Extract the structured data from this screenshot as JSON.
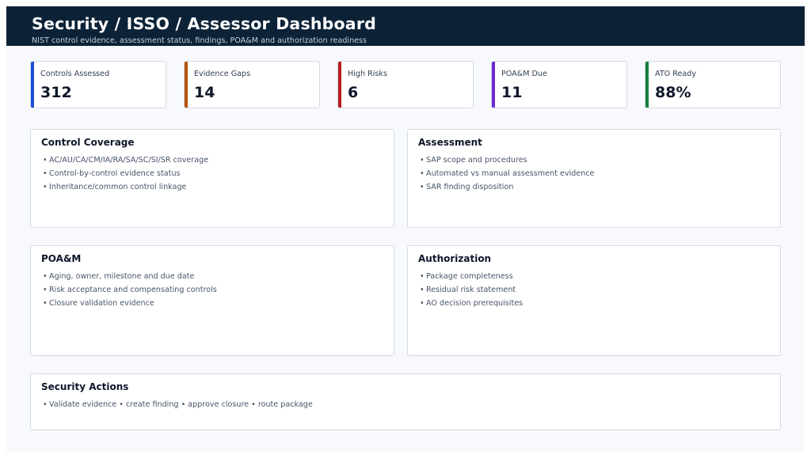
{
  "header": {
    "title": "Security / ISSO / Assessor Dashboard",
    "subtitle": "NIST control evidence, assessment status, findings, POA&M and authorization readiness"
  },
  "kpis": [
    {
      "label": "Controls Assessed",
      "value": "312",
      "color": "#1d4ed8"
    },
    {
      "label": "Evidence Gaps",
      "value": "14",
      "color": "#b45309"
    },
    {
      "label": "High Risks",
      "value": "6",
      "color": "#b91c1c"
    },
    {
      "label": "POA&M Due",
      "value": "11",
      "color": "#6d28d9"
    },
    {
      "label": "ATO Ready",
      "value": "88%",
      "color": "#15803d"
    }
  ],
  "panels": {
    "coverage": {
      "title": "Control Coverage",
      "items": [
        "AC/AU/CA/CM/IA/RA/SA/SC/SI/SR coverage",
        "Control-by-control evidence status",
        "Inheritance/common control linkage"
      ]
    },
    "assessment": {
      "title": "Assessment",
      "items": [
        "SAP scope and procedures",
        "Automated vs manual assessment evidence",
        "SAR finding disposition"
      ]
    },
    "poam": {
      "title": "POA&M",
      "items": [
        "Aging, owner, milestone and due date",
        "Risk acceptance and compensating controls",
        "Closure validation evidence"
      ]
    },
    "authorization": {
      "title": "Authorization",
      "items": [
        "Package completeness",
        "Residual risk statement",
        "AO decision prerequisites"
      ]
    },
    "actions": {
      "title": "Security Actions",
      "items": [
        "Validate evidence • create finding • approve closure • route package"
      ]
    }
  },
  "bullet": "•"
}
